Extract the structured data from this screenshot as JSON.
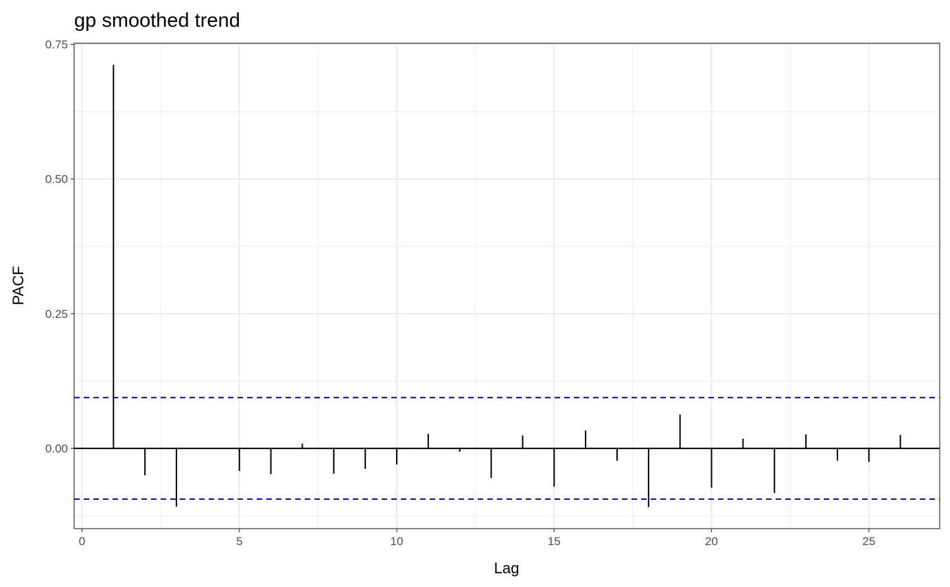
{
  "chart_data": {
    "type": "bar",
    "title": "gp smoothed trend",
    "xlabel": "Lag",
    "ylabel": "PACF",
    "x": [
      1,
      2,
      3,
      4,
      5,
      6,
      7,
      8,
      9,
      10,
      11,
      12,
      13,
      14,
      15,
      16,
      17,
      18,
      19,
      20,
      21,
      22,
      23,
      24,
      25,
      26
    ],
    "values": [
      0.712,
      -0.05,
      -0.108,
      0.0,
      -0.042,
      -0.048,
      0.009,
      -0.047,
      -0.038,
      -0.03,
      0.027,
      -0.006,
      -0.055,
      0.024,
      -0.071,
      0.033,
      -0.023,
      -0.109,
      0.063,
      -0.073,
      0.018,
      -0.083,
      0.026,
      -0.023,
      -0.025,
      0.025
    ],
    "confidence_limit": 0.0942,
    "xlim": [
      -0.25,
      27.25
    ],
    "ylim": [
      -0.149,
      0.752
    ],
    "x_ticks": [
      0,
      5,
      10,
      15,
      20,
      25
    ],
    "y_ticks": [
      0.0,
      0.25,
      0.5,
      0.75
    ],
    "x_tick_labels": [
      "0",
      "5",
      "10",
      "15",
      "20",
      "25"
    ],
    "y_tick_labels": [
      "0.00",
      "0.25",
      "0.50",
      "0.75"
    ],
    "grid": true,
    "colors": {
      "spike": "#000000",
      "confidence": "#0000ff",
      "grid": "#ebebeb",
      "border": "#333333"
    }
  }
}
